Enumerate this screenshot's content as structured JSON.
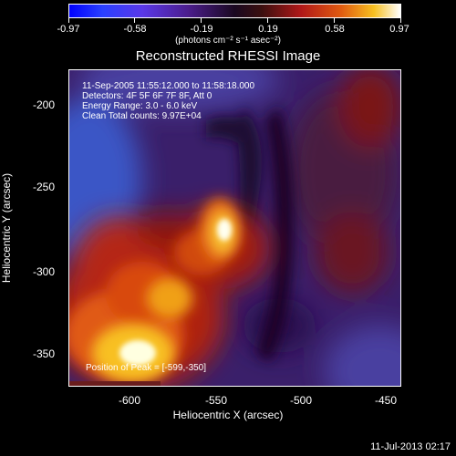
{
  "colorbar": {
    "tick_labels": [
      "-0.97",
      "-0.58",
      "-0.19",
      "0.19",
      "0.58",
      "0.97"
    ],
    "unit_label": "(photons cm⁻² s⁻¹ asec⁻²)",
    "range": [
      -0.97,
      0.97
    ]
  },
  "plot": {
    "title": "Reconstructed RHESSI Image",
    "annotations": [
      "11-Sep-2005 11:55:12.000 to 11:58:18.000",
      "Detectors: 4F 5F 6F 7F 8F, Att 0",
      "Energy Range: 3.0 - 6.0 keV",
      "Clean     Total counts: 9.97E+04"
    ],
    "peak_label": "Position of Peak = [-599,-350]"
  },
  "axes": {
    "xlabel": "Heliocentric X (arcsec)",
    "ylabel": "Heliocentric Y (arcsec)",
    "x_ticks": [
      "-600",
      "-550",
      "-500",
      "-450"
    ],
    "y_ticks": [
      "-200",
      "-250",
      "-300",
      "-350"
    ]
  },
  "footer": {
    "timestamp": "11-Jul-2013 02:17"
  }
}
